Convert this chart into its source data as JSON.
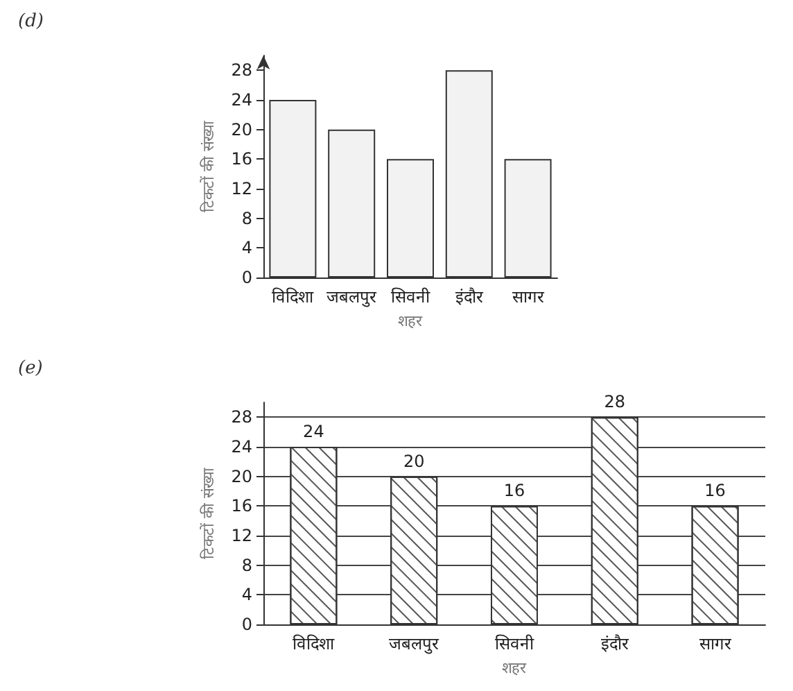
{
  "chart_data": [
    {
      "type": "bar",
      "annotations": [
        "(d)"
      ],
      "xlabel": "शहर",
      "ylabel": "टिकटों की संख्या",
      "categories": [
        "विदिशा",
        "जबलपुर",
        "सिवनी",
        "इंदौर",
        "सागर"
      ],
      "values": [
        24,
        20,
        16,
        28,
        16
      ],
      "color": "#f2f2f2",
      "ylim": [
        0,
        30
      ],
      "yticks": [
        0,
        4,
        8,
        12,
        16,
        20,
        24,
        28
      ],
      "grid": false
    },
    {
      "type": "bar",
      "annotations": [
        "(e)"
      ],
      "xlabel": "शहर",
      "ylabel": "टिकटों की संख्या",
      "categories": [
        "विदिशा",
        "जबलपुर",
        "सिवनी",
        "इंदौर",
        "सागर"
      ],
      "values": [
        24,
        20,
        16,
        28,
        16
      ],
      "color": "#ffffff",
      "ylim": [
        0,
        30
      ],
      "yticks": [
        0,
        4,
        8,
        12,
        16,
        20,
        24,
        28
      ],
      "grid": "y",
      "data_labels": true
    }
  ]
}
